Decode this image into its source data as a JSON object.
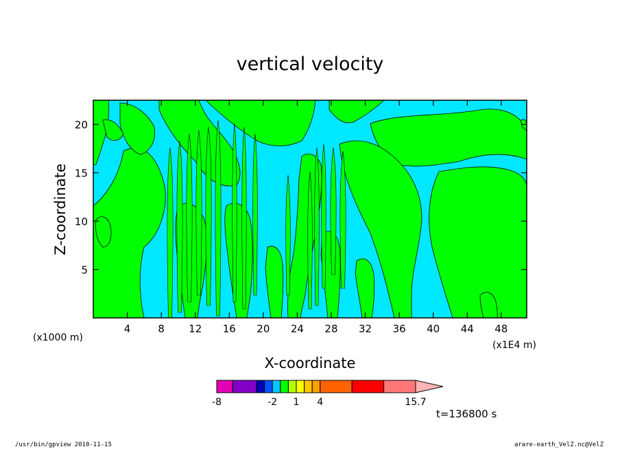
{
  "chart_data": {
    "type": "heatmap",
    "title": "vertical velocity",
    "xlabel": "X-coordinate",
    "ylabel": "Z-coordinate",
    "x_unit_left": "(x1000 m)",
    "x_unit_right": "(x1E4 m)",
    "xlim": [
      0,
      51
    ],
    "ylim": [
      0,
      22.5
    ],
    "x_ticks": [
      4,
      8,
      12,
      16,
      20,
      24,
      28,
      32,
      36,
      40,
      44,
      48
    ],
    "y_ticks": [
      5,
      10,
      15,
      20
    ],
    "fill_colors": {
      "positive": "#00ff00",
      "negative": "#00e8ff"
    },
    "colorbar": {
      "colors": [
        "#e400b4",
        "#8200c8",
        "#0000b4",
        "#0055ff",
        "#00c8ff",
        "#00ff00",
        "#b4ff00",
        "#ffff00",
        "#ffc800",
        "#ffa000",
        "#ff6400",
        "#ff0000",
        "#ff7878",
        "#ffb4b4"
      ],
      "levels": [
        -8,
        -6,
        -4,
        -3,
        -2,
        -1,
        0,
        1,
        2,
        3,
        4,
        8,
        12,
        15.7
      ],
      "tick_labels": [
        {
          "text": "-8",
          "at": -8
        },
        {
          "text": "-2",
          "at": -2
        },
        {
          "text": "1",
          "at": 1
        },
        {
          "text": "4",
          "at": 4
        },
        {
          "text": "15.7",
          "at": 15.7
        }
      ]
    },
    "time_label": "t=136800 s",
    "footer_left": "/usr/bin/gpview  2010-11-15",
    "footer_right": "arare-earth_VelZ.nc@VelZ"
  }
}
